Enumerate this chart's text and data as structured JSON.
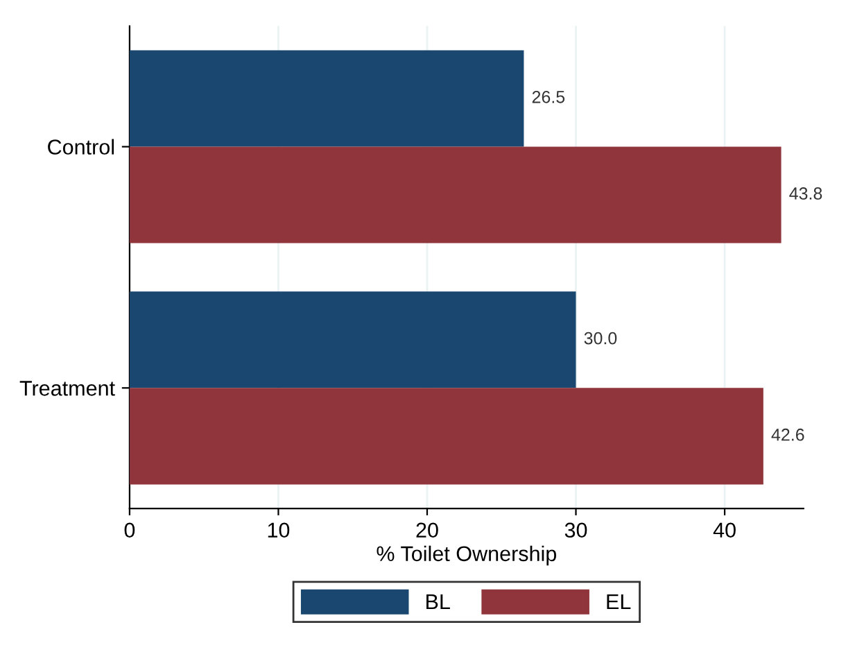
{
  "chart_data": {
    "type": "bar",
    "orientation": "horizontal",
    "xlabel": "% Toilet Ownership",
    "categories": [
      "Control",
      "Treatment"
    ],
    "series": [
      {
        "name": "BL",
        "color": "#1a476f",
        "values": [
          26.5,
          30.0
        ],
        "value_labels": [
          "26.5",
          "30.0"
        ]
      },
      {
        "name": "EL",
        "color": "#90353b",
        "values": [
          43.8,
          42.6
        ],
        "value_labels": [
          "43.8",
          "42.6"
        ]
      }
    ],
    "xlim": [
      0,
      45.3
    ],
    "xticks": [
      0,
      10,
      20,
      30,
      40
    ],
    "grid": "x",
    "legend": "bottom"
  }
}
